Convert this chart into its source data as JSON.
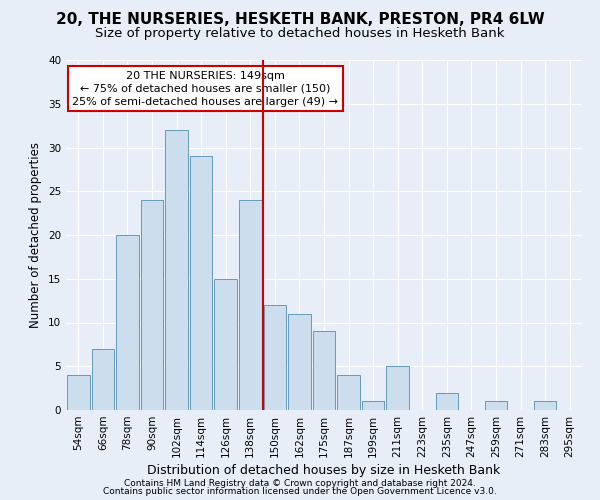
{
  "title1": "20, THE NURSERIES, HESKETH BANK, PRESTON, PR4 6LW",
  "title2": "Size of property relative to detached houses in Hesketh Bank",
  "xlabel": "Distribution of detached houses by size in Hesketh Bank",
  "ylabel": "Number of detached properties",
  "footer1": "Contains HM Land Registry data © Crown copyright and database right 2024.",
  "footer2": "Contains public sector information licensed under the Open Government Licence v3.0.",
  "bar_labels": [
    "54sqm",
    "66sqm",
    "78sqm",
    "90sqm",
    "102sqm",
    "114sqm",
    "126sqm",
    "138sqm",
    "150sqm",
    "162sqm",
    "175sqm",
    "187sqm",
    "199sqm",
    "211sqm",
    "223sqm",
    "235sqm",
    "247sqm",
    "259sqm",
    "271sqm",
    "283sqm",
    "295sqm"
  ],
  "bar_values": [
    4,
    7,
    20,
    24,
    32,
    29,
    15,
    24,
    12,
    11,
    9,
    4,
    1,
    5,
    0,
    2,
    0,
    1,
    0,
    1,
    0
  ],
  "bar_color": "#ccdded",
  "bar_edge_color": "#6699bb",
  "vline_color": "#cc0000",
  "annotation_text": "20 THE NURSERIES: 149sqm\n← 75% of detached houses are smaller (150)\n25% of semi-detached houses are larger (49) →",
  "annotation_box_color": "#ffffff",
  "annotation_box_edge_color": "#cc0000",
  "bg_color": "#e8eef8",
  "grid_color": "#ffffff",
  "ylim": [
    0,
    40
  ],
  "yticks": [
    0,
    5,
    10,
    15,
    20,
    25,
    30,
    35,
    40
  ],
  "title1_fontsize": 11,
  "title2_fontsize": 9.5,
  "xlabel_fontsize": 9,
  "ylabel_fontsize": 8.5,
  "tick_fontsize": 7.5,
  "annotation_fontsize": 8,
  "footer_fontsize": 6.5
}
